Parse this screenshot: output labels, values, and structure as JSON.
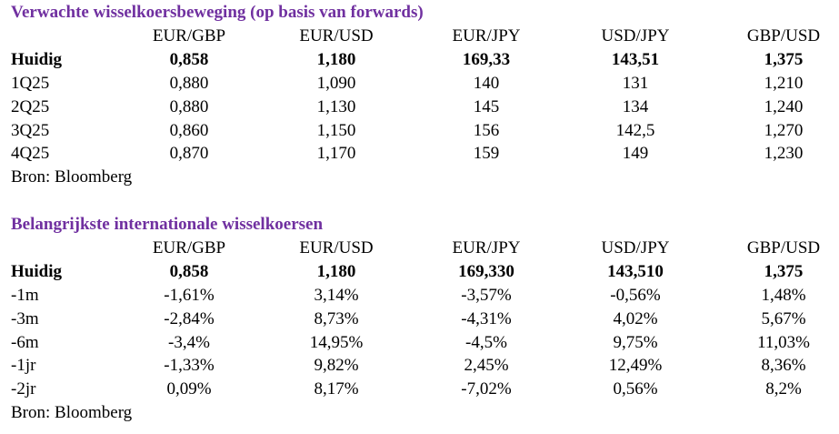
{
  "tables": [
    {
      "title": "Verwachte wisselkoersbeweging (op basis van forwards)",
      "columns": [
        "EUR/GBP",
        "EUR/USD",
        "EUR/JPY",
        "USD/JPY",
        "GBP/USD"
      ],
      "rows": [
        {
          "label": "Huidig",
          "cells": [
            "0,858",
            "1,180",
            "169,33",
            "143,51",
            "1,375"
          ]
        },
        {
          "label": "1Q25",
          "cells": [
            "0,880",
            "1,090",
            "140",
            "131",
            "1,210"
          ]
        },
        {
          "label": "2Q25",
          "cells": [
            "0,880",
            "1,130",
            "145",
            "134",
            "1,240"
          ]
        },
        {
          "label": "3Q25",
          "cells": [
            "0,860",
            "1,150",
            "156",
            "142,5",
            "1,270"
          ]
        },
        {
          "label": "4Q25",
          "cells": [
            "0,870",
            "1,170",
            "159",
            "149",
            "1,230"
          ]
        }
      ],
      "source": "Bron: Bloomberg"
    },
    {
      "title": "Belangrijkste internationale wisselkoersen",
      "columns": [
        "EUR/GBP",
        "EUR/USD",
        "EUR/JPY",
        "USD/JPY",
        "GBP/USD"
      ],
      "rows": [
        {
          "label": "Huidig",
          "cells": [
            "0,858",
            "1,180",
            "169,330",
            "143,510",
            "1,375"
          ]
        },
        {
          "label": "-1m",
          "cells": [
            "-1,61%",
            "3,14%",
            "-3,57%",
            "-0,56%",
            "1,48%"
          ]
        },
        {
          "label": "-3m",
          "cells": [
            "-2,84%",
            "8,73%",
            "-4,31%",
            "4,02%",
            "5,67%"
          ]
        },
        {
          "label": "-6m",
          "cells": [
            "-3,4%",
            "14,95%",
            "-4,5%",
            "9,75%",
            "11,03%"
          ]
        },
        {
          "label": "-1jr",
          "cells": [
            "-1,33%",
            "9,82%",
            "2,45%",
            "12,49%",
            "8,36%"
          ]
        },
        {
          "label": "-2jr",
          "cells": [
            "0,09%",
            "8,17%",
            "-7,02%",
            "0,56%",
            "8,2%"
          ]
        }
      ],
      "source": "Bron: Bloomberg"
    }
  ]
}
